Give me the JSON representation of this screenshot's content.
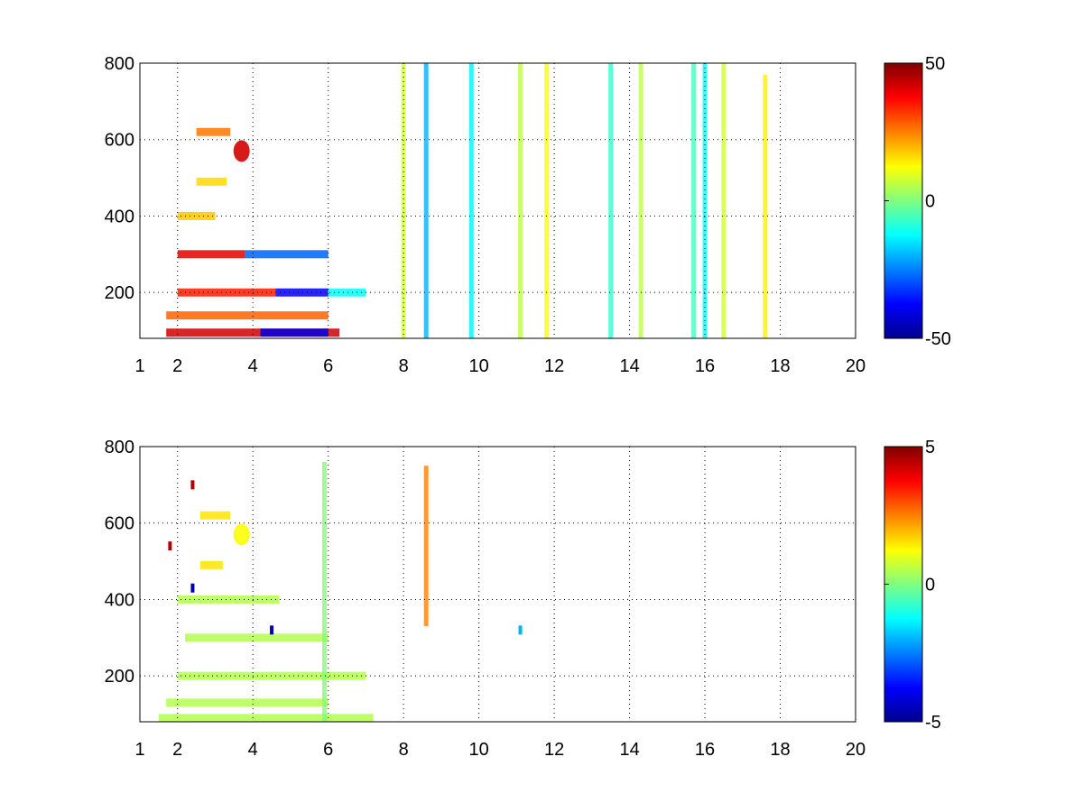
{
  "chart_data": [
    {
      "type": "heatmap",
      "title": "",
      "xlabel": "",
      "ylabel": "",
      "xlim": [
        1,
        20
      ],
      "ylim": [
        80,
        800
      ],
      "xticks": [
        1,
        2,
        4,
        6,
        8,
        10,
        12,
        14,
        16,
        18,
        20
      ],
      "yticks": [
        200,
        400,
        600,
        800
      ],
      "grid": true,
      "grid_style": "dotted",
      "colormap": "jet",
      "clim": [
        -50,
        50
      ],
      "colorbar_ticks": [
        50,
        0,
        -50
      ],
      "background": "#ffffff",
      "structures": [
        {
          "kind": "hband",
          "y": 95,
          "x": [
            1.7,
            6.3
          ],
          "value": 42
        },
        {
          "kind": "hband",
          "y": 95,
          "x": [
            4.2,
            6.0
          ],
          "value": -40
        },
        {
          "kind": "hband",
          "y": 140,
          "x": [
            1.7,
            6.0
          ],
          "value": 28
        },
        {
          "kind": "hband",
          "y": 200,
          "x": [
            2.0,
            4.6
          ],
          "value": 35
        },
        {
          "kind": "hband",
          "y": 200,
          "x": [
            4.6,
            6.0
          ],
          "value": -38
        },
        {
          "kind": "hband",
          "y": 200,
          "x": [
            6.0,
            7.0
          ],
          "value": -12
        },
        {
          "kind": "hband",
          "y": 300,
          "x": [
            2.0,
            3.8
          ],
          "value": 40
        },
        {
          "kind": "hband",
          "y": 300,
          "x": [
            3.8,
            6.0
          ],
          "value": -28
        },
        {
          "kind": "hband",
          "y": 400,
          "x": [
            2.0,
            3.0
          ],
          "value": 18
        },
        {
          "kind": "hband",
          "y": 490,
          "x": [
            2.5,
            3.3
          ],
          "value": 16
        },
        {
          "kind": "hband",
          "y": 620,
          "x": [
            2.5,
            3.4
          ],
          "value": 26
        },
        {
          "kind": "blob",
          "x": 3.7,
          "y": 570,
          "value": 42
        },
        {
          "kind": "vline",
          "x": 8.6,
          "y": [
            80,
            800
          ],
          "value": -20
        },
        {
          "kind": "vline",
          "x": 8.0,
          "y": [
            80,
            800
          ],
          "value": 8
        },
        {
          "kind": "vline",
          "x": 9.8,
          "y": [
            80,
            800
          ],
          "value": -14
        },
        {
          "kind": "vline",
          "x": 11.1,
          "y": [
            80,
            800
          ],
          "value": 6
        },
        {
          "kind": "vline",
          "x": 11.8,
          "y": [
            80,
            800
          ],
          "value": 12
        },
        {
          "kind": "vline",
          "x": 13.5,
          "y": [
            80,
            800
          ],
          "value": -8
        },
        {
          "kind": "vline",
          "x": 14.3,
          "y": [
            80,
            800
          ],
          "value": 6
        },
        {
          "kind": "vline",
          "x": 15.7,
          "y": [
            80,
            800
          ],
          "value": -6
        },
        {
          "kind": "vline",
          "x": 16.0,
          "y": [
            80,
            800
          ],
          "value": -12
        },
        {
          "kind": "vline",
          "x": 16.5,
          "y": [
            80,
            800
          ],
          "value": 8
        },
        {
          "kind": "vline",
          "x": 17.6,
          "y": [
            80,
            770
          ],
          "value": 14
        }
      ]
    },
    {
      "type": "heatmap",
      "title": "",
      "xlabel": "",
      "ylabel": "",
      "xlim": [
        1,
        20
      ],
      "ylim": [
        80,
        800
      ],
      "xticks": [
        1,
        2,
        4,
        6,
        8,
        10,
        12,
        14,
        16,
        18,
        20
      ],
      "yticks": [
        200,
        400,
        600,
        800
      ],
      "grid": true,
      "grid_style": "dotted",
      "colormap": "jet",
      "clim": [
        -5,
        5
      ],
      "colorbar_ticks": [
        5,
        0,
        -5
      ],
      "background": "#ffffff",
      "structures": [
        {
          "kind": "hband",
          "y": 90,
          "x": [
            1.5,
            7.2
          ],
          "value": 0.5
        },
        {
          "kind": "hband",
          "y": 130,
          "x": [
            1.7,
            6.0
          ],
          "value": 0.5
        },
        {
          "kind": "hband",
          "y": 200,
          "x": [
            2.0,
            7.0
          ],
          "value": 0.5
        },
        {
          "kind": "hband",
          "y": 300,
          "x": [
            2.2,
            6.0
          ],
          "value": 0.5
        },
        {
          "kind": "hband",
          "y": 400,
          "x": [
            2.0,
            4.7
          ],
          "value": 0.5
        },
        {
          "kind": "hband",
          "y": 490,
          "x": [
            2.6,
            3.2
          ],
          "value": 1.5
        },
        {
          "kind": "hband",
          "y": 620,
          "x": [
            2.6,
            3.4
          ],
          "value": 1.5
        },
        {
          "kind": "blob",
          "x": 3.7,
          "y": 570,
          "value": 1.2
        },
        {
          "kind": "vline",
          "x": 8.6,
          "y": [
            330,
            750
          ],
          "value": 2.5
        },
        {
          "kind": "vline",
          "x": 5.9,
          "y": [
            80,
            760
          ],
          "value": 0.0
        },
        {
          "kind": "point",
          "x": 11.1,
          "y": 320,
          "value": -2.0
        },
        {
          "kind": "point",
          "x": 1.8,
          "y": 540,
          "value": 4.5
        },
        {
          "kind": "point",
          "x": 2.4,
          "y": 700,
          "value": 4.5
        },
        {
          "kind": "point",
          "x": 2.4,
          "y": 430,
          "value": -4.5
        },
        {
          "kind": "point",
          "x": 4.5,
          "y": 320,
          "value": -4.5
        }
      ]
    }
  ]
}
